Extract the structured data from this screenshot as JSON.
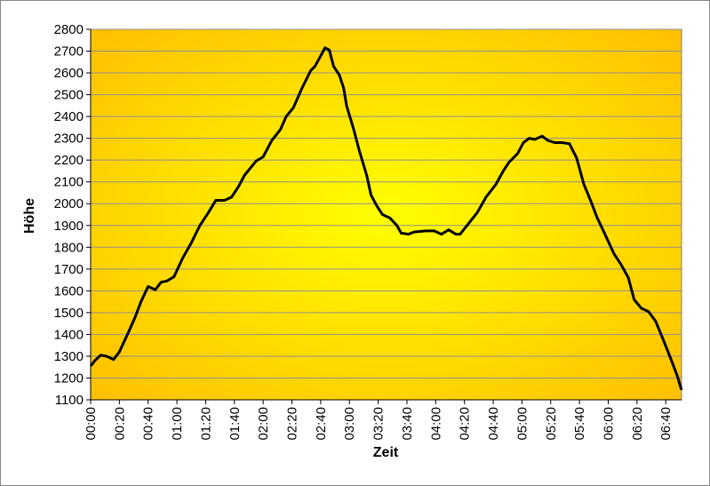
{
  "chart_data": {
    "type": "line",
    "x_label": "Zeit",
    "y_label": "Höhe",
    "x": [
      0,
      3,
      7,
      11,
      16,
      20,
      27,
      31,
      35,
      40,
      45,
      49,
      53,
      58,
      64,
      70,
      76,
      82,
      87,
      93,
      98,
      103,
      107,
      115,
      120,
      126,
      132,
      136,
      141,
      147,
      153,
      156,
      161,
      163,
      166,
      169,
      173,
      176,
      178,
      183,
      187,
      192,
      195,
      199,
      203,
      208,
      213,
      216,
      221,
      225,
      233,
      239,
      244,
      249,
      254,
      257,
      263,
      269,
      275,
      282,
      287,
      291,
      297,
      301,
      305,
      309,
      314,
      318,
      323,
      328,
      333,
      338,
      343,
      348,
      352,
      357,
      364,
      369,
      374,
      378,
      383,
      388,
      393,
      398,
      404,
      408,
      411
    ],
    "series": [
      {
        "color": "#000000",
        "values": [
          1255,
          1280,
          1305,
          1300,
          1285,
          1320,
          1420,
          1480,
          1550,
          1620,
          1605,
          1640,
          1645,
          1665,
          1750,
          1820,
          1900,
          1960,
          2015,
          2015,
          2030,
          2080,
          2130,
          2195,
          2215,
          2290,
          2340,
          2400,
          2440,
          2530,
          2610,
          2630,
          2690,
          2715,
          2705,
          2630,
          2590,
          2530,
          2450,
          2340,
          2240,
          2130,
          2040,
          1990,
          1950,
          1935,
          1900,
          1865,
          1860,
          1870,
          1875,
          1875,
          1860,
          1880,
          1860,
          1860,
          1910,
          1960,
          2030,
          2090,
          2150,
          2190,
          2230,
          2280,
          2300,
          2295,
          2310,
          2290,
          2280,
          2280,
          2275,
          2210,
          2090,
          2010,
          1940,
          1870,
          1770,
          1720,
          1660,
          1560,
          1520,
          1505,
          1460,
          1380,
          1280,
          1210,
          1145
        ]
      }
    ],
    "xlim": [
      0,
      411
    ],
    "xticks": [
      {
        "value": 0,
        "label": "00:00"
      },
      {
        "value": 20,
        "label": "00:20"
      },
      {
        "value": 40,
        "label": "00:40"
      },
      {
        "value": 60,
        "label": "01:00"
      },
      {
        "value": 80,
        "label": "01:20"
      },
      {
        "value": 100,
        "label": "01:40"
      },
      {
        "value": 120,
        "label": "02:00"
      },
      {
        "value": 140,
        "label": "02:20"
      },
      {
        "value": 160,
        "label": "02:40"
      },
      {
        "value": 180,
        "label": "03:00"
      },
      {
        "value": 200,
        "label": "03:20"
      },
      {
        "value": 220,
        "label": "03:40"
      },
      {
        "value": 240,
        "label": "04:00"
      },
      {
        "value": 260,
        "label": "04:20"
      },
      {
        "value": 280,
        "label": "04:40"
      },
      {
        "value": 300,
        "label": "05:00"
      },
      {
        "value": 320,
        "label": "05:20"
      },
      {
        "value": 340,
        "label": "05:40"
      },
      {
        "value": 360,
        "label": "06:00"
      },
      {
        "value": 380,
        "label": "06:20"
      },
      {
        "value": 400,
        "label": "06:40"
      }
    ],
    "ylim": [
      1100,
      2800
    ],
    "yticks": [
      1100,
      1200,
      1300,
      1400,
      1500,
      1600,
      1700,
      1800,
      1900,
      2000,
      2100,
      2200,
      2300,
      2400,
      2500,
      2600,
      2700,
      2800
    ],
    "grid": true
  }
}
